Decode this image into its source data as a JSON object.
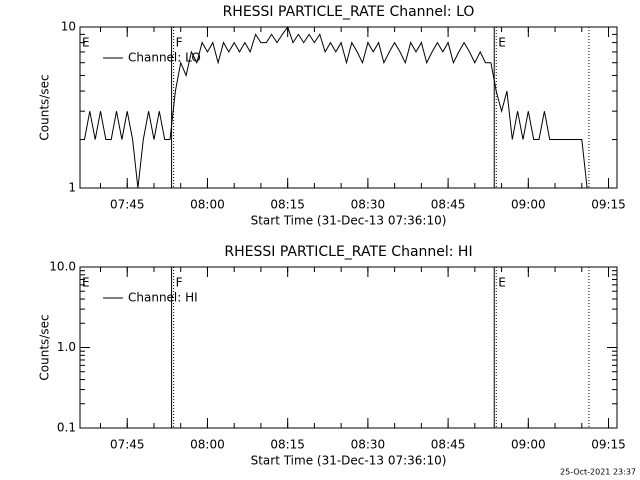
{
  "chart_data": [
    {
      "type": "line",
      "title": "RHESSI PARTICLE_RATE Channel: LO",
      "x_label": "Start Time (31-Dec-13 07:36:10)",
      "y_label": "Counts/sec",
      "log_y": true,
      "ylim": [
        1,
        10
      ],
      "yticks": [
        1,
        10
      ],
      "xlim": [
        "07:36:10",
        "09:16:35"
      ],
      "xticks": [
        "07:45",
        "08:00",
        "08:15",
        "08:30",
        "08:45",
        "09:00",
        "09:15"
      ],
      "legend": "top-left",
      "markers": [
        {
          "x": "07:36:10",
          "label": "E"
        },
        {
          "x": "07:53:40",
          "label": "F"
        },
        {
          "x": "08:54:00",
          "label": "E"
        },
        {
          "x": "09:11:20",
          "label": null
        }
      ],
      "x": [
        "07:37",
        "07:38",
        "07:39",
        "07:40",
        "07:41",
        "07:42",
        "07:43",
        "07:44",
        "07:45",
        "07:46",
        "07:47",
        "07:48",
        "07:49",
        "07:50",
        "07:51",
        "07:52",
        "07:53",
        "07:54",
        "07:55",
        "07:56",
        "07:57",
        "07:58",
        "07:59",
        "08:00",
        "08:01",
        "08:02",
        "08:03",
        "08:04",
        "08:05",
        "08:06",
        "08:07",
        "08:08",
        "08:09",
        "08:10",
        "08:11",
        "08:12",
        "08:13",
        "08:14",
        "08:15",
        "08:16",
        "08:17",
        "08:18",
        "08:19",
        "08:20",
        "08:21",
        "08:22",
        "08:23",
        "08:24",
        "08:25",
        "08:26",
        "08:27",
        "08:28",
        "08:29",
        "08:30",
        "08:31",
        "08:32",
        "08:33",
        "08:34",
        "08:35",
        "08:36",
        "08:37",
        "08:38",
        "08:39",
        "08:40",
        "08:41",
        "08:42",
        "08:43",
        "08:44",
        "08:45",
        "08:46",
        "08:47",
        "08:48",
        "08:49",
        "08:50",
        "08:51",
        "08:52",
        "08:53",
        "08:54",
        "08:55",
        "08:56",
        "08:57",
        "08:58",
        "08:59",
        "09:00",
        "09:01",
        "09:02",
        "09:03",
        "09:04",
        "09:05",
        "09:06",
        "09:07",
        "09:08",
        "09:09",
        "09:10",
        "09:11"
      ],
      "series": [
        {
          "name": "Channel: LO",
          "color": "#000000",
          "values": [
            2,
            3,
            2,
            3,
            2,
            2,
            3,
            2,
            3,
            2,
            1,
            2,
            3,
            2,
            3,
            2,
            2,
            4,
            6,
            5,
            7,
            6,
            8,
            7,
            8,
            6,
            8,
            7,
            8,
            7,
            8,
            7,
            9,
            8,
            8,
            9,
            8,
            9,
            10,
            8,
            9,
            8,
            9,
            8,
            9,
            7,
            8,
            7,
            8,
            6,
            8,
            7,
            6,
            8,
            7,
            8,
            6,
            7,
            8,
            7,
            6,
            8,
            7,
            8,
            6,
            7,
            8,
            7,
            8,
            6,
            7,
            8,
            7,
            6,
            7,
            6,
            6,
            4,
            3,
            4,
            2,
            3,
            2,
            3,
            2,
            2,
            3,
            2,
            2,
            2,
            2,
            2,
            2,
            2,
            1
          ]
        }
      ]
    },
    {
      "type": "line",
      "title": "RHESSI PARTICLE_RATE Channel: HI",
      "x_label": "Start Time (31-Dec-13 07:36:10)",
      "y_label": "Counts/sec",
      "log_y": true,
      "ylim": [
        0.1,
        10
      ],
      "yticks": [
        {
          "value": 0.1,
          "label": "0.1"
        },
        {
          "value": 1,
          "label": "1.0"
        },
        {
          "value": 10,
          "label": "10.0"
        }
      ],
      "xlim": [
        "07:36:10",
        "09:16:35"
      ],
      "xticks": [
        "07:45",
        "08:00",
        "08:15",
        "08:30",
        "08:45",
        "09:00",
        "09:15"
      ],
      "legend": "top-left",
      "markers": [
        {
          "x": "07:36:10",
          "label": "E"
        },
        {
          "x": "07:53:40",
          "label": "F"
        },
        {
          "x": "08:54:00",
          "label": "E"
        },
        {
          "x": "09:11:20",
          "label": null
        }
      ],
      "x": [],
      "series": [
        {
          "name": "Channel: HI",
          "color": "#000000",
          "values": []
        }
      ]
    }
  ],
  "footer": "25-Oct-2021 23:37"
}
